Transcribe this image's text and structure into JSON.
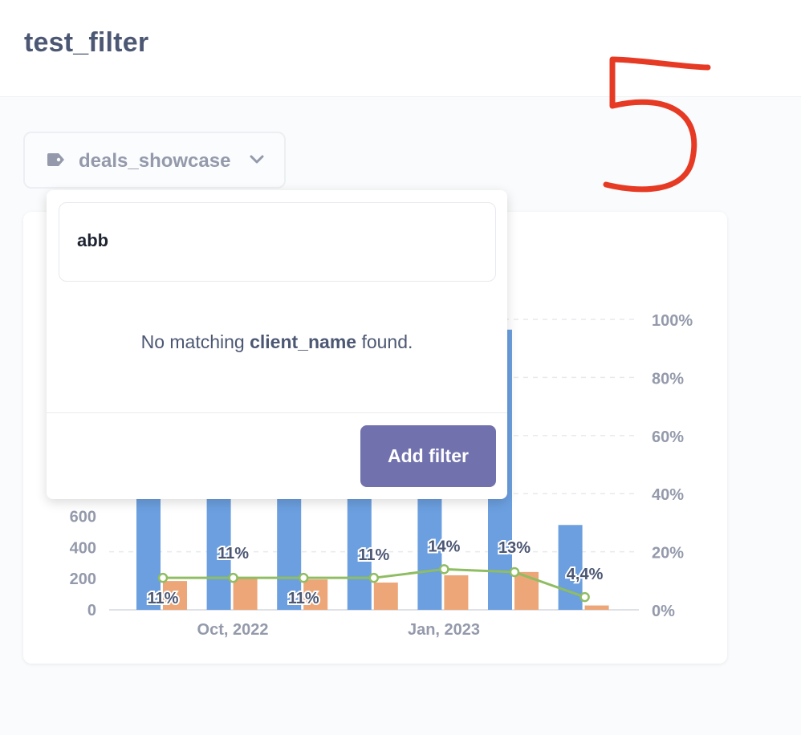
{
  "header": {
    "title": "test_filter"
  },
  "filter_widget": {
    "icon": "tag-icon",
    "label": "deals_showcase",
    "chevron": "chevron-down-icon"
  },
  "popover": {
    "search_value": "abb",
    "empty_prefix": "No matching ",
    "empty_field": "client_name",
    "empty_suffix": " found.",
    "add_button_label": "Add filter"
  },
  "annotation": {
    "text": "5",
    "color": "#e63a24"
  },
  "chart_data": {
    "type": "bar",
    "x_tick_labels": [
      "Oct, 2022",
      "Jan, 2023"
    ],
    "left_axis_ticks": [
      "0",
      "200",
      "400",
      "600"
    ],
    "right_axis_ticks": [
      "0%",
      "20%",
      "40%",
      "60%",
      "80%",
      "100%"
    ],
    "ylim_left": [
      0,
      1800
    ],
    "ylim_right": [
      0,
      100
    ],
    "series": [
      {
        "name": "",
        "kind": "bar",
        "color": "#6b9fdf",
        "values": [
          1800,
          1800,
          1800,
          1800,
          1800,
          1800,
          545
        ]
      },
      {
        "name": "",
        "kind": "bar",
        "color": "#eca677",
        "values": [
          185,
          205,
          195,
          175,
          222,
          243,
          28
        ]
      },
      {
        "name": "",
        "kind": "line",
        "color": "#8fbd62",
        "values": [
          11,
          11,
          11,
          11,
          14,
          13,
          4.4
        ]
      }
    ],
    "data_labels": [
      "11%",
      "11%",
      "11%",
      "11%",
      "14%",
      "13%",
      "4,4%"
    ]
  }
}
